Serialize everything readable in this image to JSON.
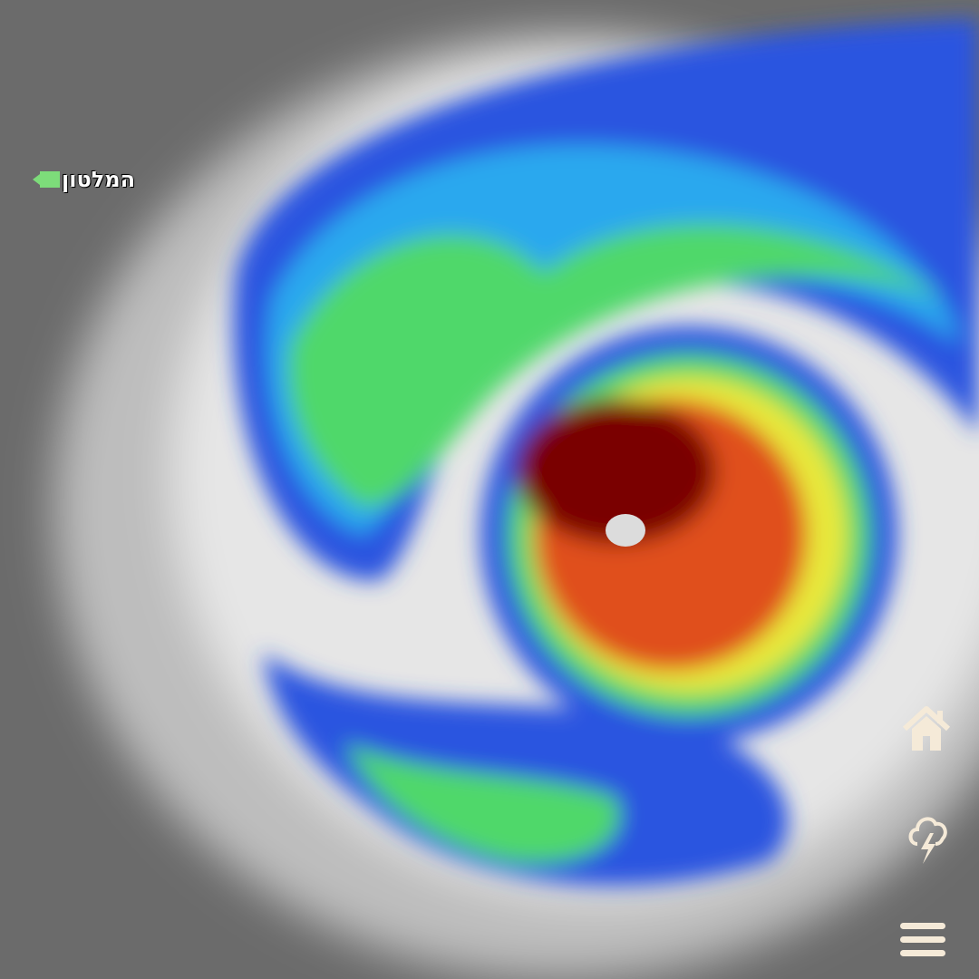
{
  "map": {
    "location_label": "המלטון",
    "location_marker_icon": "video-camera-icon",
    "colors": {
      "eye_core": "#7a0000",
      "eyewall": "#e0401a",
      "yellow": "#e8e83a",
      "green": "#3fd86a",
      "cyan": "#2aa8ee",
      "blue": "#2a3fd8",
      "cloud": "#e8e8e8",
      "background": "#6b6b6b"
    }
  },
  "controls": [
    {
      "icon": "home-icon"
    },
    {
      "icon": "thunderstorm-icon"
    },
    {
      "icon": "menu-icon"
    }
  ]
}
